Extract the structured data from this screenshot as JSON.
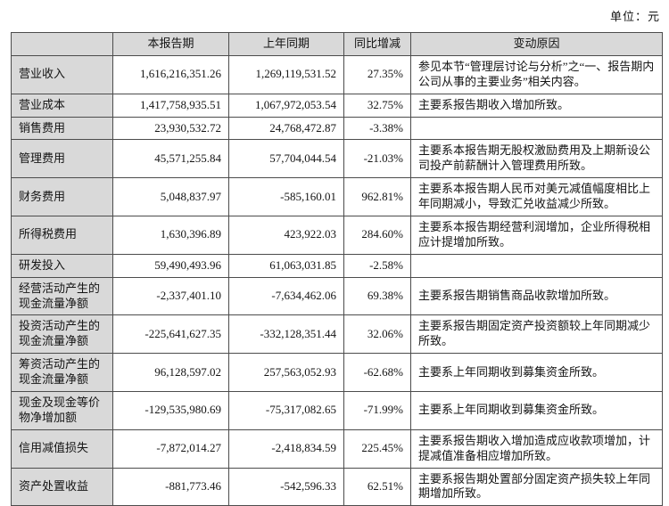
{
  "page": {
    "unit_label": "单位：元"
  },
  "colors": {
    "header_bg": "#d9d9d9",
    "label_bg": "#d9d9d9",
    "border": "#4c4c4c",
    "text": "#141414",
    "page_bg": "#ffffff"
  },
  "table": {
    "headers": {
      "item": "",
      "current_period": "本报告期",
      "prior_period": "上年同期",
      "yoy_change": "同比增减",
      "reason": "变动原因"
    },
    "rows": [
      {
        "label": "营业收入",
        "current": "1,616,216,351.26",
        "prior": "1,269,119,531.52",
        "change": "27.35%",
        "reason": "参见本节“管理层讨论与分析”之“一、报告期内公司从事的主要业务”相关内容。"
      },
      {
        "label": "营业成本",
        "current": "1,417,758,935.51",
        "prior": "1,067,972,053.54",
        "change": "32.75%",
        "reason": "主要系报告期收入增加所致。"
      },
      {
        "label": "销售费用",
        "current": "23,930,532.72",
        "prior": "24,768,472.87",
        "change": "-3.38%",
        "reason": ""
      },
      {
        "label": "管理费用",
        "current": "45,571,255.84",
        "prior": "57,704,044.54",
        "change": "-21.03%",
        "reason": "主要系本报告期无股权激励费用及上期新设公司投产前薪酬计入管理费用所致。"
      },
      {
        "label": "财务费用",
        "current": "5,048,837.97",
        "prior": "-585,160.01",
        "change": "962.81%",
        "reason": "主要系本报告期人民币对美元减值幅度相比上年同期减小，导致汇兑收益减少所致。"
      },
      {
        "label": "所得税费用",
        "current": "1,630,396.89",
        "prior": "423,922.03",
        "change": "284.60%",
        "reason": "主要系本报告期经营利润增加，企业所得税相应计提增加所致。"
      },
      {
        "label": "研发投入",
        "current": "59,490,493.96",
        "prior": "61,063,031.85",
        "change": "-2.58%",
        "reason": ""
      },
      {
        "label": "经营活动产生的现金流量净额",
        "current": "-2,337,401.10",
        "prior": "-7,634,462.06",
        "change": "69.38%",
        "reason": "主要系报告期销售商品收款增加所致。"
      },
      {
        "label": "投资活动产生的现金流量净额",
        "current": "-225,641,627.35",
        "prior": "-332,128,351.44",
        "change": "32.06%",
        "reason": "主要系报告期固定资产投资额较上年同期减少所致。"
      },
      {
        "label": "筹资活动产生的现金流量净额",
        "current": "96,128,597.02",
        "prior": "257,563,052.93",
        "change": "-62.68%",
        "reason": "主要系上年同期收到募集资金所致。"
      },
      {
        "label": "现金及现金等价物净增加额",
        "current": "-129,535,980.69",
        "prior": "-75,317,082.65",
        "change": "-71.99%",
        "reason": "主要系上年同期收到募集资金所致。"
      },
      {
        "label": "信用减值损失",
        "current": "-7,872,014.27",
        "prior": "-2,418,834.59",
        "change": "225.45%",
        "reason": "主要系报告期收入增加造成应收款项增加，计提减值准备相应增加所致。"
      },
      {
        "label": "资产处置收益",
        "current": "-881,773.46",
        "prior": "-542,596.33",
        "change": "62.51%",
        "reason": "主要系报告期处置部分固定资产损失较上年同期增加所致。"
      }
    ]
  }
}
